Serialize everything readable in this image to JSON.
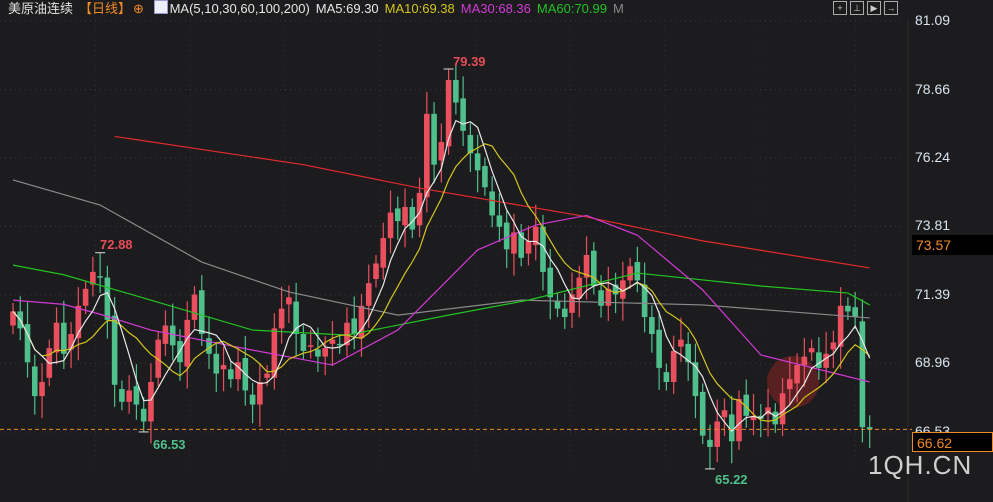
{
  "header": {
    "instrument": "美原油连续",
    "period": "【日线】",
    "add_icon": "circle-plus-icon",
    "ma_params": "MA(5,10,30,60,100,200)",
    "ma5": "MA5:69.30",
    "ma10": "MA10:69.38",
    "ma30": "MA30:68.36",
    "ma60": "MA60:70.99",
    "more": "M",
    "tools": [
      "crosshair-icon",
      "zoom-in-icon",
      "play-icon",
      "exit-icon"
    ]
  },
  "watermark": "1QH.CN",
  "chart_data": {
    "type": "candlestick",
    "y_ticks": [
      "81.09",
      "78.66",
      "76.24",
      "73.81",
      "71.39",
      "68.96",
      "66.53"
    ],
    "ylim": [
      65.0,
      81.09
    ],
    "grid": true,
    "last_price": "66.62",
    "ma200_price": "73.57",
    "annotations": {
      "high1": "72.88",
      "low1": "66.53",
      "high2": "79.39",
      "low2": "65.22"
    },
    "colors": {
      "up": "#ea4f5d",
      "down": "#4fbf8b",
      "ma5": "#e8e8e8",
      "ma10": "#d4c51c",
      "ma30": "#d23ad6",
      "ma60": "#22c322",
      "ma100": "#8a8a8a",
      "ma200": "#e52a2a",
      "last": "#f08a24"
    },
    "closes": [
      70.8,
      70.2,
      69.0,
      67.8,
      68.3,
      69.5,
      70.4,
      69.3,
      70.0,
      71.0,
      71.6,
      72.2,
      72.0,
      70.5,
      68.2,
      67.6,
      68.0,
      67.5,
      66.9,
      68.3,
      69.8,
      70.3,
      69.6,
      69.0,
      70.5,
      71.4,
      70.0,
      69.3,
      68.6,
      68.9,
      68.4,
      69.0,
      68.0,
      67.5,
      68.3,
      68.6,
      70.2,
      70.9,
      71.3,
      70.0,
      69.4,
      69.6,
      69.2,
      69.5,
      69.8,
      69.6,
      70.4,
      70.0,
      71.0,
      71.8,
      72.5,
      73.4,
      74.3,
      74.0,
      74.5,
      73.7,
      75.0,
      77.8,
      76.0,
      76.8,
      79.0,
      78.2,
      77.2,
      76.4,
      75.8,
      75.2,
      74.2,
      73.8,
      73.0,
      73.6,
      72.7,
      73.3,
      73.8,
      72.2,
      71.3,
      70.9,
      70.6,
      71.4,
      72.0,
      72.8,
      71.7,
      71.0,
      71.6,
      71.4,
      71.9,
      72.4,
      71.9,
      70.6,
      70.0,
      68.8,
      68.3,
      69.4,
      69.8,
      69.0,
      67.8,
      66.4,
      66.0,
      66.9,
      67.3,
      66.2,
      67.7,
      67.1,
      67.1,
      67.0,
      67.4,
      66.8,
      67.9,
      68.4,
      68.9,
      69.2,
      69.5,
      68.8,
      69.3,
      69.7,
      71.0,
      70.8,
      70.6,
      66.7,
      66.62
    ],
    "first_open": 70.3,
    "special_extremes": {
      "high": [
        [
          12,
          72.88
        ],
        [
          60,
          79.39
        ]
      ],
      "low": [
        [
          18,
          66.53
        ],
        [
          96,
          65.22
        ]
      ]
    },
    "ma30": [
      [
        0,
        71.2
      ],
      [
        7,
        71.05
      ],
      [
        12,
        70.7
      ],
      [
        19,
        70.14
      ],
      [
        33,
        69.43
      ],
      [
        44,
        68.9
      ],
      [
        53,
        70.14
      ],
      [
        64,
        72.98
      ],
      [
        72,
        73.86
      ],
      [
        79,
        74.2
      ],
      [
        86,
        73.5
      ],
      [
        95,
        71.56
      ],
      [
        103,
        69.26
      ],
      [
        118,
        68.3
      ]
    ],
    "ma60": [
      [
        0,
        72.44
      ],
      [
        7,
        72.1
      ],
      [
        19,
        71.2
      ],
      [
        33,
        70.14
      ],
      [
        46,
        69.96
      ],
      [
        60,
        70.67
      ],
      [
        71,
        71.2
      ],
      [
        86,
        72.16
      ],
      [
        103,
        71.7
      ],
      [
        115,
        71.45
      ],
      [
        118,
        71.03
      ]
    ],
    "ma100": [
      [
        0,
        75.46
      ],
      [
        12,
        74.57
      ],
      [
        26,
        72.55
      ],
      [
        38,
        71.49
      ],
      [
        53,
        70.67
      ],
      [
        70,
        71.2
      ],
      [
        95,
        71.03
      ],
      [
        118,
        70.57
      ]
    ],
    "ma200": [
      [
        14,
        77.0
      ],
      [
        40,
        76.0
      ],
      [
        56,
        75.17
      ],
      [
        78,
        74.2
      ],
      [
        95,
        73.3
      ],
      [
        118,
        72.34
      ]
    ]
  }
}
